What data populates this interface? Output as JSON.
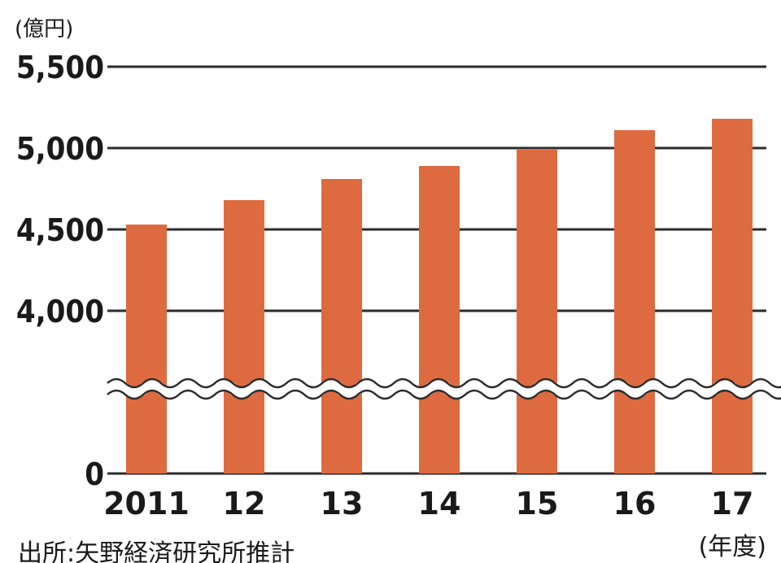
{
  "chart_data": {
    "type": "bar",
    "y_unit_label": "(億円)",
    "x_unit_label": "(年度)",
    "categories": [
      "2011",
      "12",
      "13",
      "14",
      "15",
      "16",
      "17"
    ],
    "values": [
      4530,
      4680,
      4810,
      4890,
      4990,
      5110,
      5180
    ],
    "y_ticks": [
      "5,500",
      "5,000",
      "4,500",
      "4,000",
      "0"
    ],
    "y_tick_values": [
      5500,
      5000,
      4500,
      4000,
      0
    ],
    "ylim": [
      4000,
      5500
    ],
    "axis_break": true,
    "grid": true,
    "bar_color": "#de6a3f",
    "source": "出所:矢野経済研究所推計"
  }
}
